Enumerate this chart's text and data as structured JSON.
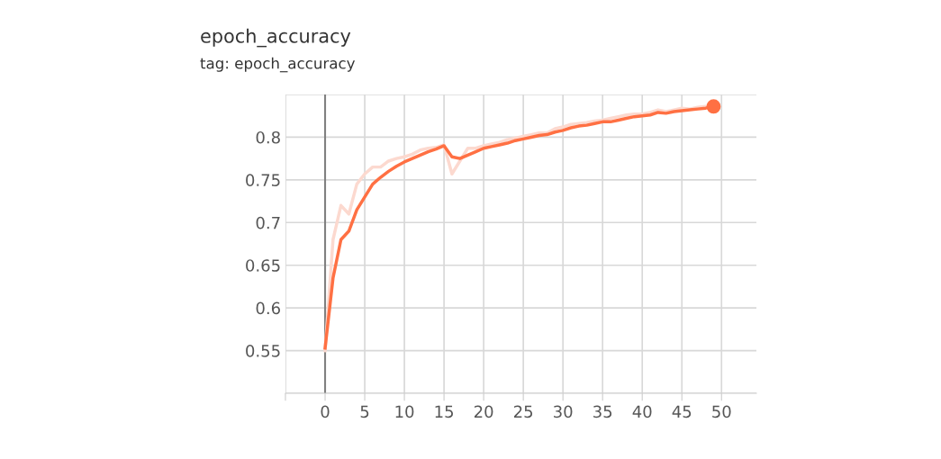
{
  "chart_data": {
    "type": "line",
    "title": "epoch_accuracy",
    "subtitle": "tag: epoch_accuracy",
    "xlim": [
      -5,
      54.4
    ],
    "xticks": [
      {
        "value": -5,
        "label": null
      },
      0,
      5,
      10,
      15,
      20,
      25,
      30,
      35,
      40,
      45,
      50
    ],
    "ylim": [
      0.5,
      0.85
    ],
    "yticks": [
      {
        "value": 0.5,
        "label": null
      },
      0.55,
      0.6,
      0.65,
      0.7,
      0.75,
      0.8,
      {
        "value": 0.85,
        "label": null
      }
    ],
    "grid": true,
    "ref_lines": [
      {
        "axis": "x",
        "value": 0,
        "label": null,
        "color": "#808080"
      }
    ],
    "series": [
      {
        "color": "#fcd9cf",
        "x": [
          0,
          1,
          2,
          3,
          4,
          5,
          6,
          7,
          8,
          9,
          10,
          11,
          12,
          13,
          14,
          15,
          16,
          17,
          18,
          19,
          20,
          21,
          22,
          23,
          24,
          25,
          26,
          27,
          28,
          29,
          30,
          31,
          32,
          33,
          34,
          35,
          36,
          37,
          38,
          39,
          40,
          41,
          42,
          43,
          44,
          45,
          46,
          47,
          48
        ],
        "values": [
          0.55,
          0.68,
          0.72,
          0.71,
          0.745,
          0.757,
          0.765,
          0.765,
          0.772,
          0.775,
          0.777,
          0.78,
          0.785,
          0.787,
          0.788,
          0.791,
          0.757,
          0.772,
          0.787,
          0.787,
          0.79,
          0.792,
          0.794,
          0.797,
          0.799,
          0.801,
          0.803,
          0.805,
          0.805,
          0.81,
          0.812,
          0.815,
          0.816,
          0.817,
          0.819,
          0.82,
          0.822,
          0.824,
          0.826,
          0.827,
          0.827,
          0.829,
          0.832,
          0.83,
          0.832,
          0.834,
          0.833,
          0.835,
          0.836
        ]
      },
      {
        "color": "#ff7043",
        "x": [
          0,
          1,
          2,
          3,
          4,
          5,
          6,
          7,
          8,
          9,
          10,
          11,
          12,
          13,
          14,
          15,
          16,
          17,
          18,
          19,
          20,
          21,
          22,
          23,
          24,
          25,
          26,
          27,
          28,
          29,
          30,
          31,
          32,
          33,
          34,
          35,
          36,
          37,
          38,
          39,
          40,
          41,
          42,
          43,
          44,
          45,
          46,
          47,
          48,
          49
        ],
        "values": [
          0.553,
          0.635,
          0.68,
          0.69,
          0.715,
          0.73,
          0.745,
          0.753,
          0.76,
          0.766,
          0.771,
          0.775,
          0.779,
          0.783,
          0.786,
          0.79,
          0.777,
          0.775,
          0.779,
          0.783,
          0.787,
          0.789,
          0.791,
          0.793,
          0.796,
          0.798,
          0.8,
          0.802,
          0.803,
          0.806,
          0.808,
          0.811,
          0.813,
          0.814,
          0.816,
          0.818,
          0.818,
          0.82,
          0.822,
          0.824,
          0.825,
          0.826,
          0.829,
          0.828,
          0.83,
          0.831,
          0.832,
          0.833,
          0.834,
          0.836
        ]
      },
      {
        "type": "scatter",
        "color": "#ff7043",
        "marker": "circle",
        "x": [
          49
        ],
        "values": [
          0.836
        ]
      }
    ]
  }
}
